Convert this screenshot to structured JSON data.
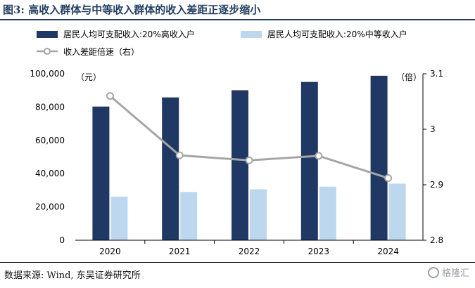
{
  "figure": {
    "title": "图3:  高收入群体与中等收入群体的收入差距正逐步缩小",
    "source": "数据来源:  Wind, 东吴证券研究所",
    "watermark": "格隆汇"
  },
  "colors": {
    "high_income_bar": "#1f3864",
    "middle_income_bar": "#bdd7ee",
    "ratio_line": "#a6a6a6",
    "title": "#243f60"
  },
  "chart_data": {
    "type": "bar",
    "categories": [
      "2020",
      "2021",
      "2022",
      "2023",
      "2024"
    ],
    "series": [
      {
        "name": "居民人均可支配收入:20%高收入户",
        "type": "bar",
        "axis": "left",
        "values": [
          80300,
          85800,
          90100,
          95100,
          98800
        ]
      },
      {
        "name": "居民人均可支配收入:20%中等收入户",
        "type": "bar",
        "axis": "left",
        "values": [
          26200,
          29000,
          30600,
          32200,
          34000
        ]
      },
      {
        "name": "收入差距倍速（右）",
        "type": "line",
        "axis": "right",
        "values": [
          3.06,
          2.953,
          2.944,
          2.952,
          2.912
        ]
      }
    ],
    "y_left": {
      "label": "（元）",
      "min": 0,
      "max": 100000,
      "ticks": [
        "0",
        "20,000",
        "40,000",
        "60,000",
        "80,000",
        "100,000"
      ]
    },
    "y_right": {
      "label": "（倍）",
      "min": 2.8,
      "max": 3.1,
      "ticks": [
        "2.8",
        "2.9",
        "3",
        "3.1"
      ]
    },
    "grid": false,
    "legend": "top"
  }
}
